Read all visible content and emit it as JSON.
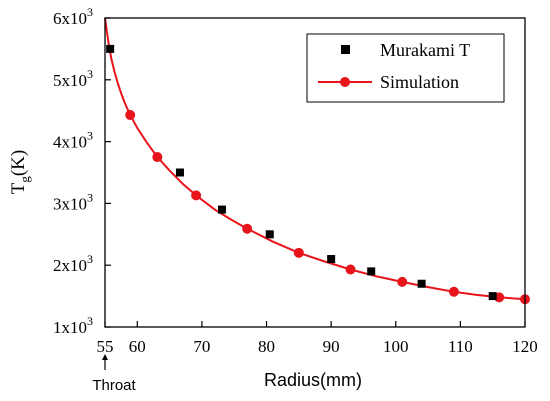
{
  "chart_data": {
    "type": "scatter",
    "xlabel": "Radius(mm)",
    "ylabel": "T",
    "ylabel_sub": "g",
    "ylabel_suffix": "(K)",
    "xlim": [
      55,
      120
    ],
    "ylim": [
      1000,
      6000
    ],
    "x_ticks": [
      55,
      60,
      70,
      80,
      90,
      100,
      110,
      120
    ],
    "y_ticks": [
      {
        "value": 1000,
        "mantissa": "1x10",
        "exp": "3"
      },
      {
        "value": 2000,
        "mantissa": "2x10",
        "exp": "3"
      },
      {
        "value": 3000,
        "mantissa": "3x10",
        "exp": "3"
      },
      {
        "value": 4000,
        "mantissa": "4x10",
        "exp": "3"
      },
      {
        "value": 5000,
        "mantissa": "5x10",
        "exp": "3"
      },
      {
        "value": 6000,
        "mantissa": "6x10",
        "exp": "3"
      }
    ],
    "legend_position": "top-right",
    "annotation": {
      "text": "Throat",
      "x": 55
    },
    "series": [
      {
        "name": "Murakami T",
        "marker": "square",
        "color": "#000000",
        "x": [
          55.8,
          66.6,
          73.1,
          80.5,
          90.0,
          96.2,
          104.0,
          115.0
        ],
        "y": [
          5500,
          3500,
          2900,
          2500,
          2100,
          1900,
          1700,
          1500
        ]
      },
      {
        "name": "Simulation",
        "marker": "circle",
        "color": "#e8141c",
        "line": true,
        "x": [
          58.9,
          63.1,
          69.1,
          77.0,
          85.0,
          93.0,
          101.0,
          109.0,
          116.0,
          120.0
        ],
        "y": [
          4430,
          3750,
          3130,
          2590,
          2200,
          1930,
          1730,
          1570,
          1480,
          1450
        ],
        "curve_x": [
          55.0,
          55.3,
          55.6,
          56.0,
          56.5,
          57.0,
          57.5,
          58.0,
          58.9,
          60.0,
          61.5,
          63.1,
          65.0,
          67.0,
          69.1,
          72.0,
          74.5,
          77.0,
          81.0,
          85.0,
          89.0,
          93.0,
          97.0,
          101.0,
          105.0,
          109.0,
          112.5,
          116.0,
          120.0
        ],
        "curve_y": [
          6000,
          5780,
          5560,
          5330,
          5120,
          4940,
          4780,
          4640,
          4430,
          4220,
          3980,
          3750,
          3530,
          3320,
          3130,
          2900,
          2740,
          2590,
          2380,
          2200,
          2060,
          1930,
          1820,
          1730,
          1645,
          1570,
          1520,
          1480,
          1450
        ]
      }
    ]
  }
}
